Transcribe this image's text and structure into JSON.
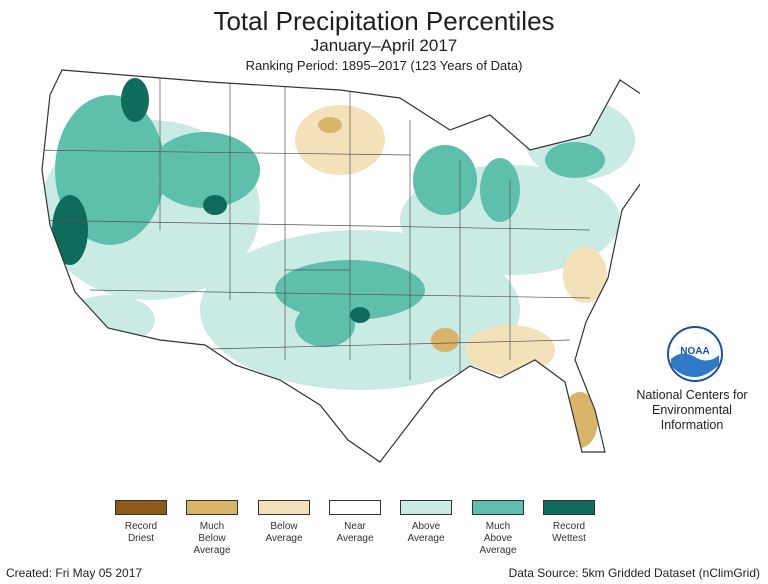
{
  "header": {
    "title": "Total Precipitation Percentiles",
    "subtitle": "January–April 2017",
    "ranking_period": "Ranking Period: 1895–2017 (123 Years of Data)"
  },
  "organization": {
    "logo_text": "NOAA",
    "name_lines": [
      "National Centers for",
      "Environmental",
      "Information"
    ]
  },
  "legend": [
    {
      "label": "Record\nDriest",
      "color": "#8b5a1c"
    },
    {
      "label": "Much\nBelow\nAverage",
      "color": "#d9b56c"
    },
    {
      "label": "Below\nAverage",
      "color": "#f3e2b9"
    },
    {
      "label": "Near\nAverage",
      "color": "#ffffff"
    },
    {
      "label": "Above\nAverage",
      "color": "#c9ebe4"
    },
    {
      "label": "Much\nAbove\nAverage",
      "color": "#5ebfad"
    },
    {
      "label": "Record\nWettest",
      "color": "#0f6b5c"
    }
  ],
  "footer": {
    "created": "Created: Fri May 05 2017",
    "source": "Data Source: 5km Gridded Dataset (nClimGrid)"
  }
}
